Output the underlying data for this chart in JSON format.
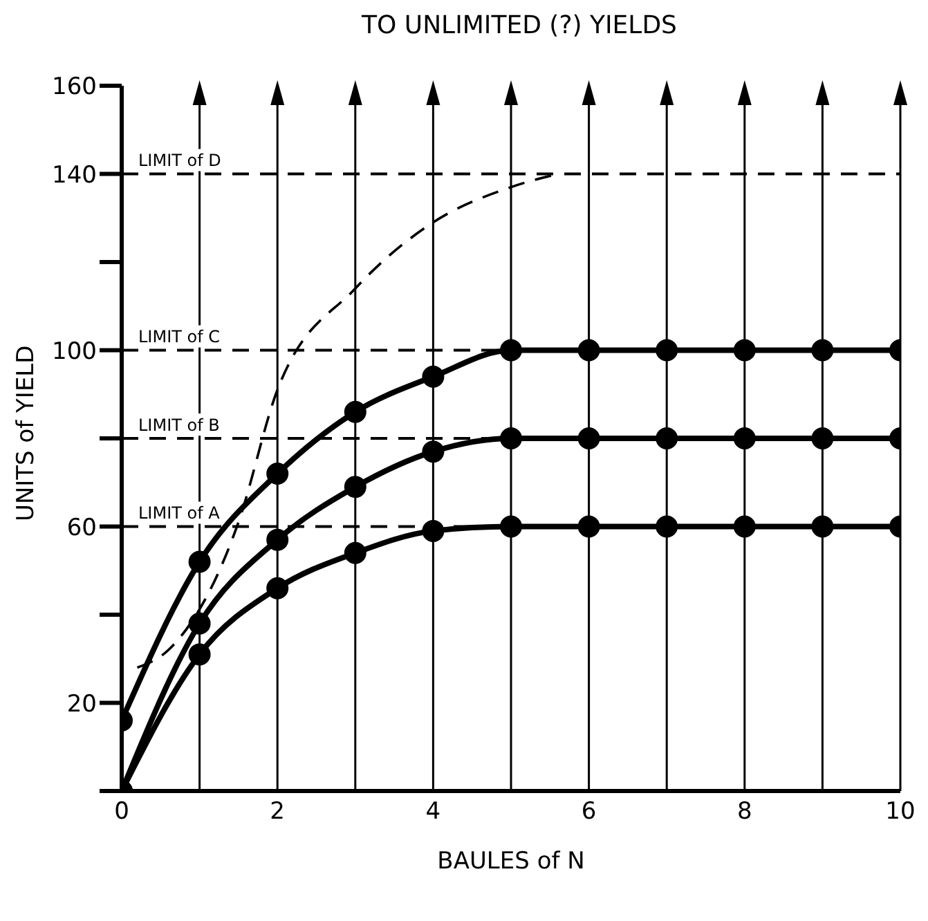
{
  "chart_data": {
    "type": "line",
    "title": "TO UNLIMITED (?) YIELDS",
    "xlabel": "BAULES of N",
    "ylabel": "UNITS of YIELD",
    "xlim": [
      0,
      10
    ],
    "xticks": [
      0,
      {
        "value": 1,
        "label": null
      },
      2,
      {
        "value": 3,
        "label": null
      },
      4,
      {
        "value": 5,
        "label": null
      },
      6,
      {
        "value": 7,
        "label": null
      },
      8,
      {
        "value": 9,
        "label": null
      },
      10
    ],
    "ylim": [
      0,
      160
    ],
    "yticks": [
      {
        "value": 0,
        "label": null
      },
      20,
      {
        "value": 40,
        "label": null
      },
      60,
      {
        "value": 80,
        "label": null
      },
      100,
      {
        "value": 120,
        "label": null
      },
      140,
      160
    ],
    "grid": "x",
    "series": [
      {
        "color": "#000000",
        "marker": "circle",
        "line_style": "solid",
        "x": [
          0,
          1,
          2,
          3,
          4,
          5,
          6,
          7,
          8,
          9,
          10
        ],
        "values": [
          0,
          31,
          46,
          54,
          59,
          60,
          60,
          60,
          60,
          60,
          60
        ]
      },
      {
        "color": "#000000",
        "marker": "circle",
        "line_style": "solid",
        "x": [
          0,
          1,
          2,
          3,
          4,
          5,
          6,
          7,
          8,
          9,
          10
        ],
        "values": [
          0,
          38,
          57,
          69,
          77,
          80,
          80,
          80,
          80,
          80,
          80
        ]
      },
      {
        "color": "#000000",
        "marker": "circle",
        "line_style": "solid",
        "x": [
          0,
          1,
          2,
          3,
          4,
          5,
          6,
          7,
          8,
          9,
          10
        ],
        "values": [
          16,
          52,
          72,
          86,
          94,
          100,
          100,
          100,
          100,
          100,
          100
        ]
      },
      {
        "color": "#000000",
        "marker": "none",
        "line_style": "dashed",
        "x": [
          0.2,
          0.6,
          1.5,
          2,
          3,
          4,
          5,
          5.6
        ],
        "values": [
          28,
          32,
          61,
          91,
          114,
          129,
          137,
          140
        ]
      }
    ],
    "ref_lines": [
      {
        "axis": "y",
        "value": 60,
        "label": "LIMIT of A",
        "line_style": "dashed"
      },
      {
        "axis": "y",
        "value": 80,
        "label": "LIMIT of B",
        "line_style": "dashed"
      },
      {
        "axis": "y",
        "value": 100,
        "label": "LIMIT of C",
        "line_style": "dashed"
      },
      {
        "axis": "y",
        "value": 140,
        "label": "LIMIT of D",
        "line_style": "dashed"
      }
    ]
  }
}
